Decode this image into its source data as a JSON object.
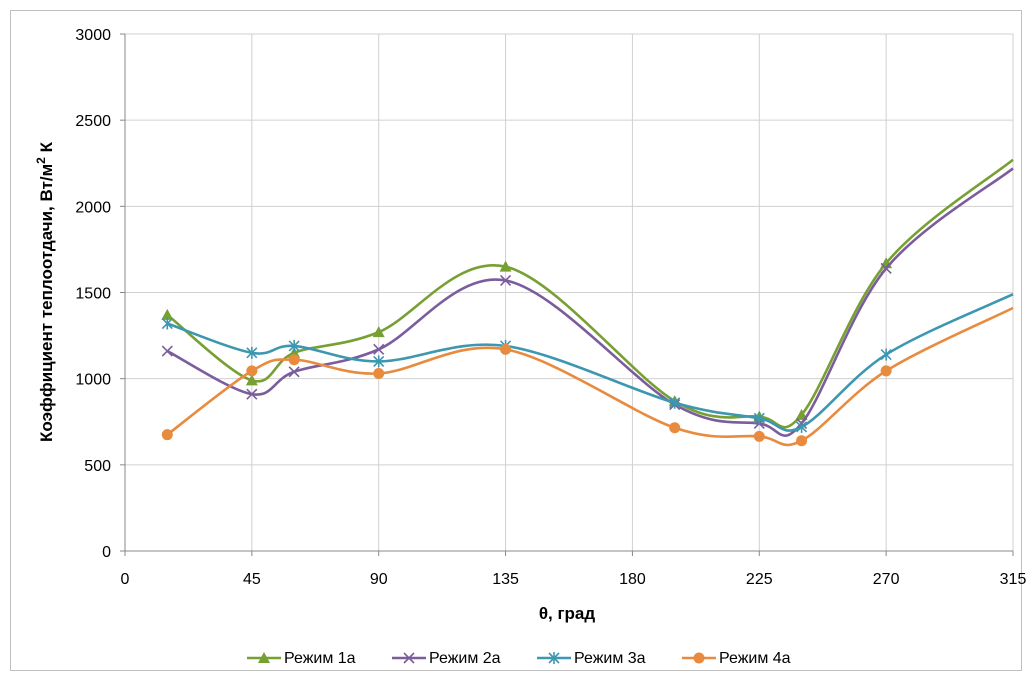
{
  "chart_data": {
    "type": "line",
    "title": "",
    "xlabel": "θ, град",
    "ylabel": "Коэффициент теплоотдачи, Вт/м",
    "ylabel_sup": "2",
    "ylabel_tail": " К",
    "xlim": [
      0,
      315
    ],
    "ylim": [
      0,
      3000
    ],
    "x_ticks": [
      0,
      45,
      90,
      135,
      180,
      225,
      270,
      315
    ],
    "y_ticks": [
      0,
      500,
      1000,
      1500,
      2000,
      2500,
      3000
    ],
    "grid": true,
    "legend_position": "bottom",
    "smooth": true,
    "series": [
      {
        "name": "Режим 1а",
        "color": "#77a033",
        "marker": "triangle",
        "x": [
          15,
          45,
          60,
          90,
          135,
          195,
          225,
          240,
          270,
          315
        ],
        "y": [
          1370,
          990,
          1150,
          1270,
          1650,
          870,
          780,
          790,
          1670,
          2270
        ]
      },
      {
        "name": "Режим 2а",
        "color": "#7b5c9c",
        "marker": "x",
        "x": [
          15,
          45,
          60,
          90,
          135,
          195,
          225,
          240,
          270,
          315
        ],
        "y": [
          1160,
          910,
          1040,
          1170,
          1570,
          850,
          740,
          740,
          1640,
          2220
        ]
      },
      {
        "name": "Режим 3а",
        "color": "#3d97b0",
        "marker": "star",
        "x": [
          15,
          45,
          60,
          90,
          135,
          195,
          225,
          240,
          270,
          315
        ],
        "y": [
          1320,
          1150,
          1190,
          1100,
          1190,
          860,
          770,
          720,
          1140,
          1490
        ]
      },
      {
        "name": "Режим 4а",
        "color": "#e88b3f",
        "marker": "circle",
        "x": [
          15,
          45,
          60,
          90,
          135,
          195,
          225,
          240,
          270,
          315
        ],
        "y": [
          675,
          1045,
          1110,
          1030,
          1170,
          715,
          665,
          640,
          1045,
          1410
        ]
      }
    ]
  }
}
